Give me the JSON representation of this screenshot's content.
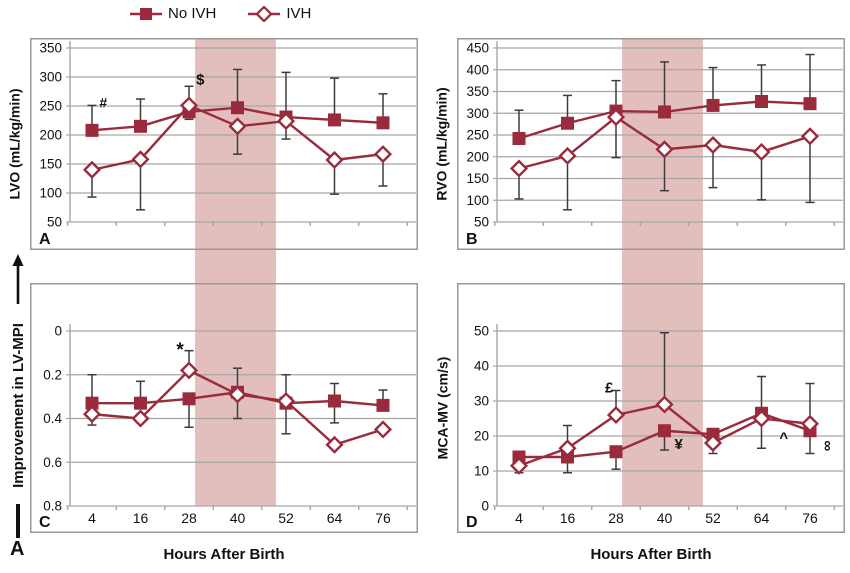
{
  "figure": {
    "label": "A",
    "xlabel": "Hours After Birth",
    "legend": [
      {
        "label": "No IVH",
        "marker": "square"
      },
      {
        "label": "IVH",
        "marker": "diamond"
      }
    ],
    "colors": {
      "series": "#992b3c",
      "band": "#e2bebd",
      "grid": "#a6a6a6",
      "border": "#999999",
      "error": "#3c3c3c",
      "text": "#111111"
    }
  },
  "chart_data": [
    {
      "type": "line",
      "panel": "A",
      "ylabel": "LVO (mL/kg/min)",
      "xlabel": "Hours After Birth",
      "x": [
        4,
        16,
        28,
        40,
        52,
        64,
        76
      ],
      "ylim": [
        50,
        350
      ],
      "yticks": [
        50,
        100,
        150,
        200,
        250,
        300,
        350
      ],
      "band_x": [
        29.5,
        49.5
      ],
      "series": [
        {
          "name": "No IVH",
          "marker": "square",
          "values": [
            208,
            215,
            240,
            247,
            231,
            226,
            221
          ],
          "err_hi": [
            251,
            262,
            null,
            313,
            308,
            298,
            271
          ],
          "err_lo": [
            null,
            null,
            227,
            null,
            null,
            null,
            null
          ]
        },
        {
          "name": "IVH",
          "marker": "diamond",
          "values": [
            140,
            158,
            251,
            215,
            224,
            157,
            167
          ],
          "err_hi": [
            null,
            null,
            284,
            null,
            null,
            null,
            null
          ],
          "err_lo": [
            93,
            71,
            null,
            167,
            193,
            98,
            112
          ]
        }
      ],
      "annotations": [
        {
          "text": "#",
          "x": 6.8,
          "y": 247,
          "size": 14
        },
        {
          "text": "$",
          "x": 30.8,
          "y": 287,
          "size": 15
        }
      ]
    },
    {
      "type": "line",
      "panel": "B",
      "ylabel": "RVO (mL/kg/min)",
      "xlabel": "Hours After Birth",
      "x": [
        4,
        16,
        28,
        40,
        52,
        64,
        76
      ],
      "ylim": [
        50,
        450
      ],
      "yticks": [
        50,
        100,
        150,
        200,
        250,
        300,
        350,
        400,
        450
      ],
      "band_x": [
        29.5,
        49.5
      ],
      "series": [
        {
          "name": "No IVH",
          "marker": "square",
          "values": [
            242,
            277,
            305,
            303,
            318,
            327,
            322
          ],
          "err_hi": [
            307,
            341,
            375,
            418,
            405,
            411,
            435
          ],
          "err_lo": [
            null,
            null,
            null,
            null,
            null,
            null,
            null
          ]
        },
        {
          "name": "IVH",
          "marker": "diamond",
          "values": [
            173,
            202,
            291,
            217,
            227,
            211,
            247
          ],
          "err_hi": [
            null,
            null,
            null,
            null,
            null,
            null,
            null
          ],
          "err_lo": [
            103,
            78,
            198,
            122,
            129,
            101,
            95
          ]
        }
      ],
      "annotations": []
    },
    {
      "type": "line",
      "panel": "C",
      "ylabel": "Improvement in LV-MPI",
      "xlabel": "Hours After Birth",
      "x": [
        4,
        16,
        28,
        40,
        52,
        64,
        76
      ],
      "ylim": [
        0.8,
        0
      ],
      "yticks": [
        0,
        0.2,
        0.4,
        0.6,
        0.8
      ],
      "band_x": [
        29.5,
        49.5
      ],
      "series": [
        {
          "name": "No IVH",
          "marker": "square",
          "values": [
            0.33,
            0.33,
            0.31,
            0.28,
            0.33,
            0.32,
            0.34
          ],
          "err_hi": [
            0.2,
            0.23,
            null,
            0.17,
            0.2,
            0.24,
            0.27
          ],
          "err_lo": [
            null,
            null,
            0.44,
            0.4,
            0.47,
            0.42,
            null
          ]
        },
        {
          "name": "IVH",
          "marker": "diamond",
          "values": [
            0.38,
            0.4,
            0.18,
            0.29,
            0.32,
            0.52,
            0.45
          ],
          "err_hi": [
            null,
            null,
            0.09,
            null,
            null,
            null,
            null
          ],
          "err_lo": [
            0.43,
            null,
            null,
            null,
            null,
            null,
            null
          ]
        }
      ],
      "annotations": [
        {
          "text": "*",
          "x": 25.8,
          "y": 0.115,
          "size": 19
        }
      ]
    },
    {
      "type": "line",
      "panel": "D",
      "ylabel": "MCA-MV (cm/s)",
      "xlabel": "Hours After Birth",
      "x": [
        4,
        16,
        28,
        40,
        52,
        64,
        76
      ],
      "ylim": [
        0,
        50
      ],
      "yticks": [
        0,
        10,
        20,
        30,
        40,
        50
      ],
      "band_x": [
        29.5,
        49.5
      ],
      "series": [
        {
          "name": "No IVH",
          "marker": "square",
          "values": [
            14,
            14,
            15.5,
            21.5,
            20.5,
            26.5,
            21.5
          ],
          "err_hi": [
            null,
            23,
            null,
            null,
            null,
            37,
            null
          ],
          "err_lo": [
            null,
            9.5,
            10.5,
            16,
            15,
            16.5,
            15
          ]
        },
        {
          "name": "IVH",
          "marker": "diamond",
          "values": [
            11.5,
            16.5,
            26,
            29,
            18,
            25,
            23.5
          ],
          "err_hi": [
            null,
            null,
            33,
            49.5,
            null,
            null,
            35
          ],
          "err_lo": [
            9.5,
            null,
            null,
            null,
            null,
            null,
            null
          ]
        }
      ],
      "annotations": [
        {
          "text": "£",
          "x": 26.3,
          "y": 32.5,
          "size": 15
        },
        {
          "text": "¥",
          "x": 43.5,
          "y": 16.3,
          "size": 15
        },
        {
          "text": "^",
          "x": 69.5,
          "y": 18.2,
          "size": 15
        },
        {
          "text": "∞",
          "x": 79.2,
          "y": 17.2,
          "size": 15,
          "rotate": 90
        }
      ]
    }
  ]
}
